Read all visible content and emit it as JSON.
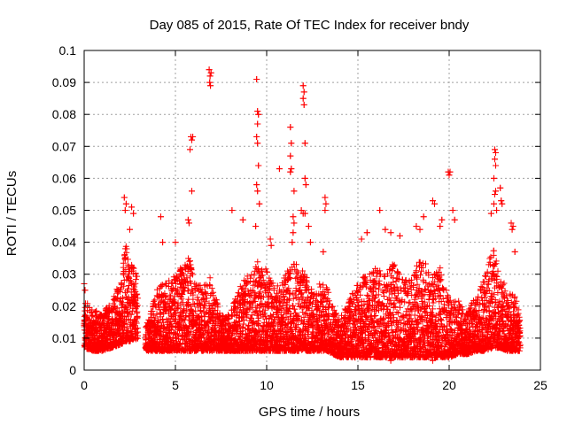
{
  "chart_data": {
    "type": "scatter",
    "title": "Day 085 of 2015, Rate Of TEC Index for receiver bndy",
    "xlabel": "GPS time / hours",
    "ylabel": "ROTI / TECUs",
    "xlim": [
      0,
      25
    ],
    "ylim": [
      0,
      0.1
    ],
    "x_ticks": [
      0,
      5,
      10,
      15,
      20,
      25
    ],
    "x_tick_labels": [
      "0",
      "5",
      "10",
      "15",
      "20",
      "25"
    ],
    "y_ticks": [
      0,
      0.01,
      0.02,
      0.03,
      0.04,
      0.05,
      0.06,
      0.07,
      0.08,
      0.09,
      0.1
    ],
    "y_tick_labels": [
      "0",
      "0.01",
      "0.02",
      "0.03",
      "0.04",
      "0.05",
      "0.06",
      "0.07",
      "0.08",
      "0.09",
      "0.1"
    ],
    "grid": true,
    "marker": "+",
    "color": "#ff0000",
    "envelope": {
      "note_x_hours": [
        0,
        0.5,
        1,
        1.5,
        2,
        2.3,
        2.5,
        3,
        3.3,
        4,
        5,
        5.8,
        6,
        6.5,
        6.9,
        7.5,
        8,
        8.5,
        9,
        9.5,
        10,
        10.5,
        11,
        11.5,
        12,
        12.5,
        13,
        13.3,
        14,
        14.5,
        15,
        15.5,
        16,
        16.5,
        17,
        17.5,
        18,
        18.5,
        19,
        19.5,
        20,
        20.5,
        21,
        21.5,
        22,
        22.4,
        22.8,
        23.2,
        23.5,
        23.9
      ],
      "typical_max": [
        0.022,
        0.019,
        0.018,
        0.022,
        0.028,
        0.042,
        0.035,
        0.028,
        0.012,
        0.026,
        0.03,
        0.036,
        0.028,
        0.027,
        0.029,
        0.017,
        0.018,
        0.026,
        0.03,
        0.034,
        0.032,
        0.026,
        0.03,
        0.034,
        0.032,
        0.025,
        0.028,
        0.026,
        0.016,
        0.022,
        0.028,
        0.03,
        0.032,
        0.03,
        0.034,
        0.028,
        0.03,
        0.036,
        0.03,
        0.032,
        0.022,
        0.022,
        0.018,
        0.024,
        0.03,
        0.04,
        0.03,
        0.025,
        0.024,
        0.02
      ],
      "typical_min": [
        0.007,
        0.006,
        0.006,
        0.007,
        0.008,
        0.009,
        0.009,
        0.01,
        0.006,
        0.006,
        0.006,
        0.006,
        0.006,
        0.006,
        0.006,
        0.006,
        0.006,
        0.006,
        0.006,
        0.006,
        0.006,
        0.006,
        0.006,
        0.006,
        0.006,
        0.006,
        0.006,
        0.006,
        0.004,
        0.004,
        0.004,
        0.004,
        0.004,
        0.004,
        0.004,
        0.004,
        0.004,
        0.004,
        0.004,
        0.004,
        0.004,
        0.005,
        0.005,
        0.006,
        0.006,
        0.007,
        0.007,
        0.006,
        0.006,
        0.006
      ]
    },
    "notable_points": [
      {
        "x": 0.0,
        "y": 0.027
      },
      {
        "x": 0.05,
        "y": 0.025
      },
      {
        "x": 2.2,
        "y": 0.054
      },
      {
        "x": 2.3,
        "y": 0.052
      },
      {
        "x": 2.25,
        "y": 0.05
      },
      {
        "x": 2.6,
        "y": 0.051
      },
      {
        "x": 2.7,
        "y": 0.049
      },
      {
        "x": 2.5,
        "y": 0.044
      },
      {
        "x": 4.2,
        "y": 0.048
      },
      {
        "x": 4.3,
        "y": 0.04
      },
      {
        "x": 5.0,
        "y": 0.04
      },
      {
        "x": 5.7,
        "y": 0.047
      },
      {
        "x": 5.75,
        "y": 0.046
      },
      {
        "x": 5.85,
        "y": 0.073
      },
      {
        "x": 5.9,
        "y": 0.072
      },
      {
        "x": 5.95,
        "y": 0.073
      },
      {
        "x": 5.8,
        "y": 0.069
      },
      {
        "x": 5.9,
        "y": 0.056
      },
      {
        "x": 6.85,
        "y": 0.094
      },
      {
        "x": 6.9,
        "y": 0.092
      },
      {
        "x": 6.95,
        "y": 0.093
      },
      {
        "x": 6.88,
        "y": 0.09
      },
      {
        "x": 6.92,
        "y": 0.089
      },
      {
        "x": 8.1,
        "y": 0.05
      },
      {
        "x": 8.7,
        "y": 0.047
      },
      {
        "x": 9.45,
        "y": 0.091
      },
      {
        "x": 9.5,
        "y": 0.081
      },
      {
        "x": 9.55,
        "y": 0.08
      },
      {
        "x": 9.5,
        "y": 0.077
      },
      {
        "x": 9.45,
        "y": 0.073
      },
      {
        "x": 9.5,
        "y": 0.071
      },
      {
        "x": 9.55,
        "y": 0.064
      },
      {
        "x": 9.45,
        "y": 0.058
      },
      {
        "x": 9.5,
        "y": 0.056
      },
      {
        "x": 9.6,
        "y": 0.052
      },
      {
        "x": 9.4,
        "y": 0.045
      },
      {
        "x": 10.2,
        "y": 0.041
      },
      {
        "x": 10.25,
        "y": 0.039
      },
      {
        "x": 10.7,
        "y": 0.063
      },
      {
        "x": 11.3,
        "y": 0.076
      },
      {
        "x": 11.35,
        "y": 0.071
      },
      {
        "x": 11.3,
        "y": 0.067
      },
      {
        "x": 11.35,
        "y": 0.063
      },
      {
        "x": 11.3,
        "y": 0.062
      },
      {
        "x": 11.5,
        "y": 0.056
      },
      {
        "x": 11.45,
        "y": 0.048
      },
      {
        "x": 11.5,
        "y": 0.046
      },
      {
        "x": 11.45,
        "y": 0.043
      },
      {
        "x": 11.4,
        "y": 0.04
      },
      {
        "x": 12.0,
        "y": 0.089
      },
      {
        "x": 12.05,
        "y": 0.087
      },
      {
        "x": 12.0,
        "y": 0.085
      },
      {
        "x": 12.05,
        "y": 0.083
      },
      {
        "x": 12.1,
        "y": 0.071
      },
      {
        "x": 12.1,
        "y": 0.06
      },
      {
        "x": 12.15,
        "y": 0.058
      },
      {
        "x": 11.9,
        "y": 0.05
      },
      {
        "x": 12.0,
        "y": 0.049
      },
      {
        "x": 12.1,
        "y": 0.049
      },
      {
        "x": 12.3,
        "y": 0.045
      },
      {
        "x": 12.4,
        "y": 0.04
      },
      {
        "x": 13.2,
        "y": 0.054
      },
      {
        "x": 13.25,
        "y": 0.052
      },
      {
        "x": 13.2,
        "y": 0.05
      },
      {
        "x": 13.1,
        "y": 0.037
      },
      {
        "x": 15.2,
        "y": 0.041
      },
      {
        "x": 15.5,
        "y": 0.043
      },
      {
        "x": 16.2,
        "y": 0.05
      },
      {
        "x": 16.5,
        "y": 0.044
      },
      {
        "x": 16.8,
        "y": 0.043
      },
      {
        "x": 17.3,
        "y": 0.042
      },
      {
        "x": 18.2,
        "y": 0.045
      },
      {
        "x": 18.4,
        "y": 0.044
      },
      {
        "x": 18.6,
        "y": 0.048
      },
      {
        "x": 19.1,
        "y": 0.053
      },
      {
        "x": 19.2,
        "y": 0.052
      },
      {
        "x": 19.6,
        "y": 0.047
      },
      {
        "x": 19.5,
        "y": 0.045
      },
      {
        "x": 19.95,
        "y": 0.062
      },
      {
        "x": 20.0,
        "y": 0.061
      },
      {
        "x": 20.05,
        "y": 0.062
      },
      {
        "x": 20.2,
        "y": 0.05
      },
      {
        "x": 20.3,
        "y": 0.047
      },
      {
        "x": 22.5,
        "y": 0.069
      },
      {
        "x": 22.55,
        "y": 0.068
      },
      {
        "x": 22.5,
        "y": 0.066
      },
      {
        "x": 22.55,
        "y": 0.064
      },
      {
        "x": 22.45,
        "y": 0.06
      },
      {
        "x": 22.55,
        "y": 0.056
      },
      {
        "x": 22.5,
        "y": 0.055
      },
      {
        "x": 22.45,
        "y": 0.052
      },
      {
        "x": 22.6,
        "y": 0.05
      },
      {
        "x": 22.8,
        "y": 0.057
      },
      {
        "x": 22.85,
        "y": 0.053
      },
      {
        "x": 22.9,
        "y": 0.052
      },
      {
        "x": 22.3,
        "y": 0.049
      },
      {
        "x": 23.4,
        "y": 0.046
      },
      {
        "x": 23.45,
        "y": 0.044
      },
      {
        "x": 23.5,
        "y": 0.045
      },
      {
        "x": 23.6,
        "y": 0.037
      },
      {
        "x": 19.1,
        "y": 0.003
      },
      {
        "x": 16.8,
        "y": 0.003
      }
    ]
  }
}
